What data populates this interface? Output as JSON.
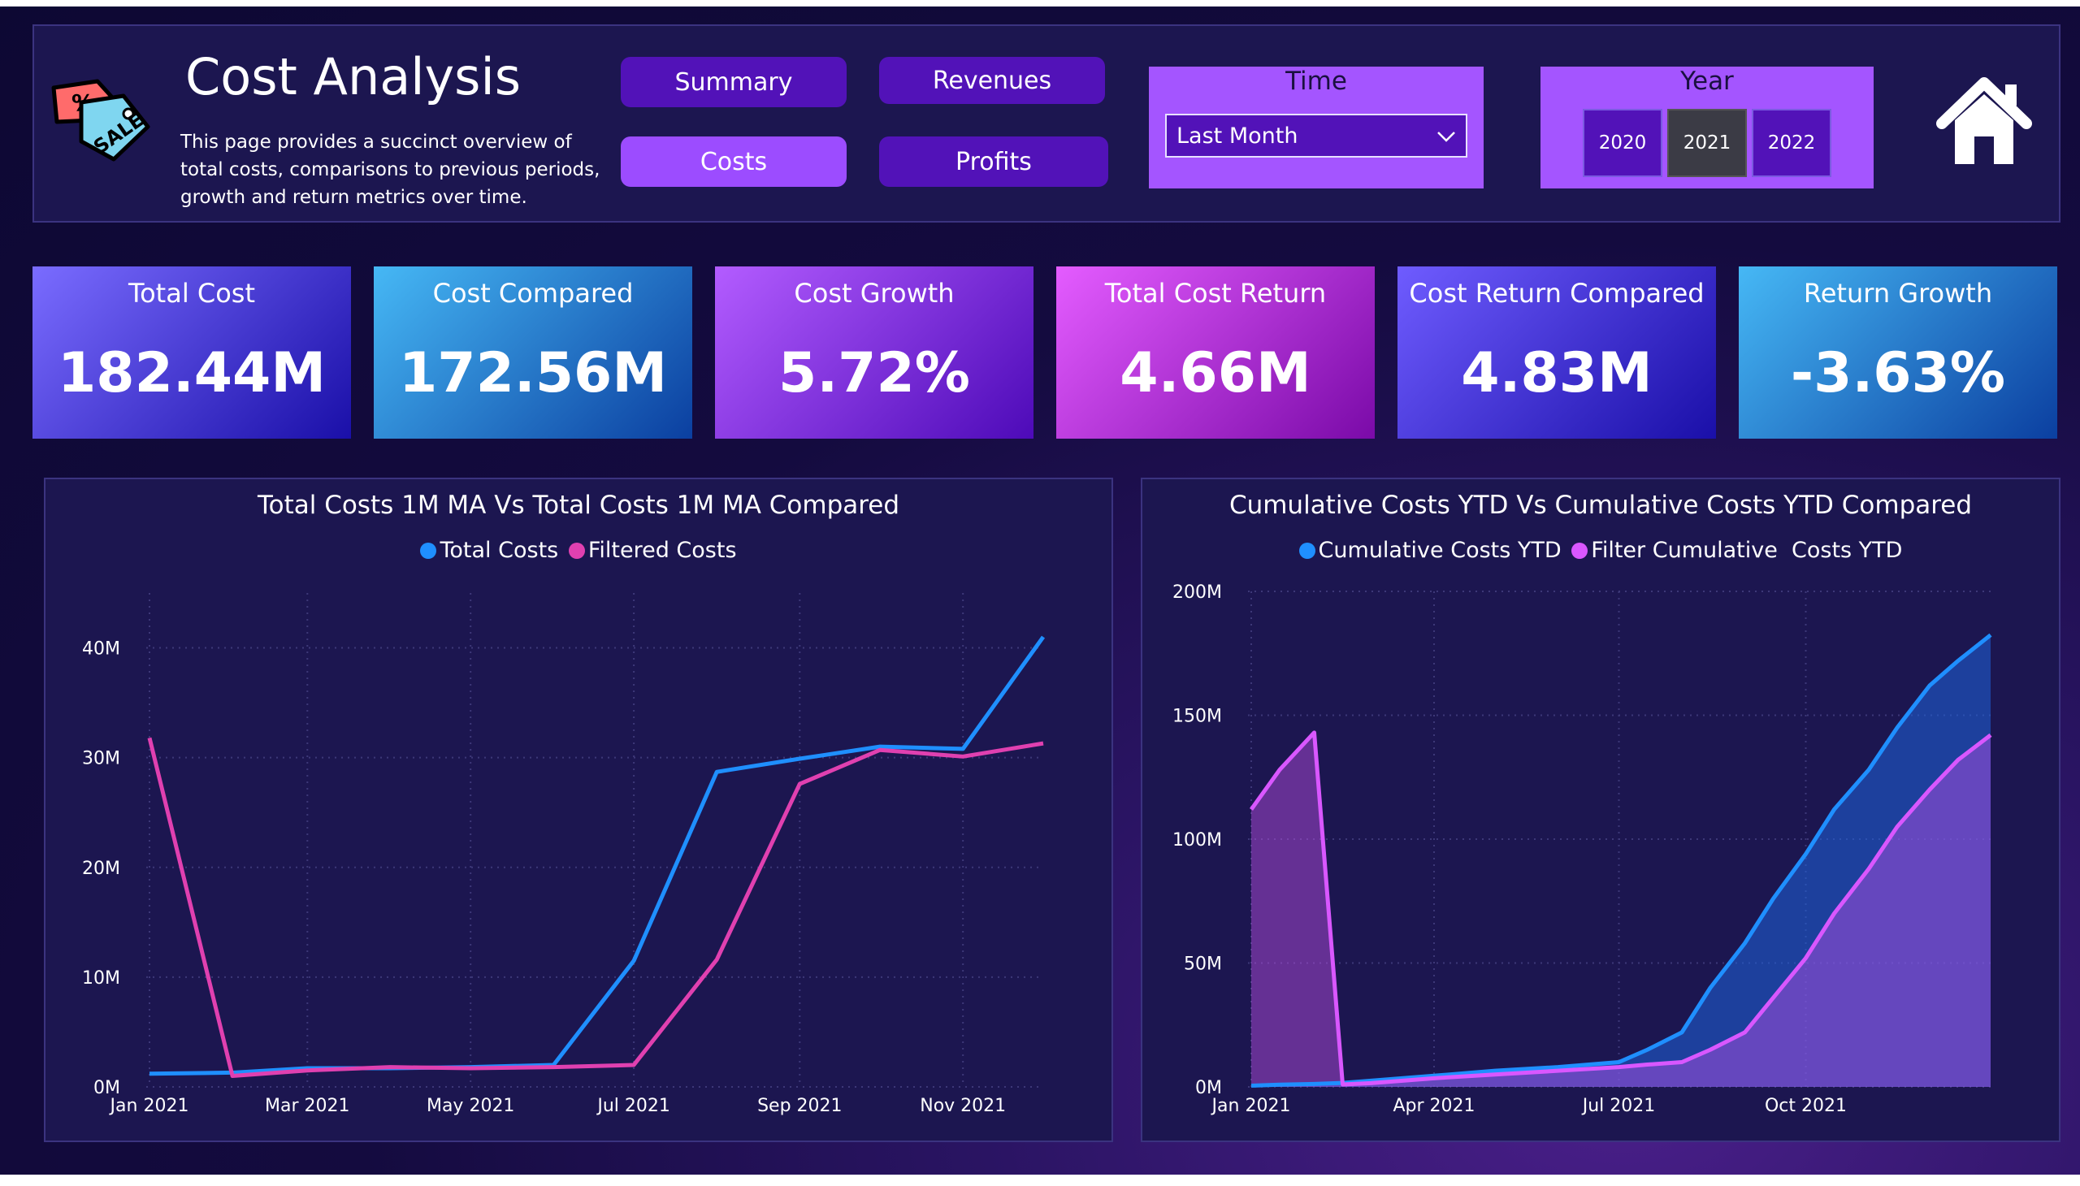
{
  "header": {
    "title": "Cost Analysis",
    "description": "This page provides a succinct overview of total costs, comparisons to previous periods, growth and return metrics over time.",
    "logo_icon": "sale-tag-icon"
  },
  "nav": {
    "summary": "Summary",
    "revenues": "Revenues",
    "costs": "Costs",
    "profits": "Profits",
    "active": "Costs"
  },
  "time_slicer": {
    "title": "Time",
    "selected": "Last Month"
  },
  "year_slicer": {
    "title": "Year",
    "options": [
      "2020",
      "2021",
      "2022"
    ],
    "selected": "2021"
  },
  "home_icon": "home-icon",
  "kpis": [
    {
      "label": "Total Cost",
      "value": "182.44M",
      "colors": [
        "#7a6cff",
        "#1a0fa8"
      ]
    },
    {
      "label": "Cost Compared",
      "value": "172.56M",
      "colors": [
        "#46b8f5",
        "#0b3fa0"
      ]
    },
    {
      "label": "Cost Growth",
      "value": "5.72%",
      "colors": [
        "#b35cff",
        "#4d0ab8"
      ]
    },
    {
      "label": "Total Cost Return",
      "value": "4.66M",
      "colors": [
        "#e45cff",
        "#7a0aa8"
      ]
    },
    {
      "label": "Cost Return Compared",
      "value": "4.83M",
      "colors": [
        "#6f5cff",
        "#1a0fa8"
      ]
    },
    {
      "label": "Return Growth",
      "value": "-3.63%",
      "colors": [
        "#46b8f5",
        "#0b3fa0"
      ]
    }
  ],
  "chart_data": [
    {
      "type": "line",
      "title": "Total Costs 1M MA Vs Total Costs 1M MA Compared",
      "x": [
        "2021-01-01",
        "2021-02-01",
        "2021-03-01",
        "2021-04-01",
        "2021-05-01",
        "2021-06-01",
        "2021-07-01",
        "2021-08-01",
        "2021-09-01",
        "2021-10-01",
        "2021-11-01",
        "2021-12-01"
      ],
      "xticks": [
        "Jan 2021",
        "Mar 2021",
        "May 2021",
        "Jul 2021",
        "Sep 2021",
        "Nov 2021"
      ],
      "yticks": [
        "0M",
        "10M",
        "20M",
        "30M",
        "40M"
      ],
      "ylim": [
        0,
        45
      ],
      "series": [
        {
          "name": "Total Costs",
          "color": "#1f8fff",
          "values": [
            1.2,
            1.3,
            1.7,
            1.7,
            1.8,
            2.0,
            11.5,
            28.7,
            29.9,
            31.0,
            30.8,
            41.0
          ]
        },
        {
          "name": "Filtered Costs",
          "color": "#e040b0",
          "values": [
            31.8,
            1.0,
            1.5,
            1.8,
            1.7,
            1.8,
            2.0,
            11.6,
            27.6,
            30.7,
            30.1,
            31.3
          ]
        }
      ],
      "grid": true,
      "legend": "top-center"
    },
    {
      "type": "area",
      "title": "Cumulative Costs YTD Vs Cumulative Costs YTD Compared",
      "x": [
        "2021-01-01",
        "2021-01-15",
        "2021-02-01",
        "2021-02-15",
        "2021-03-01",
        "2021-04-01",
        "2021-05-01",
        "2021-06-01",
        "2021-07-01",
        "2021-07-15",
        "2021-08-01",
        "2021-08-15",
        "2021-09-01",
        "2021-09-15",
        "2021-10-01",
        "2021-10-15",
        "2021-11-01",
        "2021-11-15",
        "2021-12-01",
        "2021-12-15",
        "2021-12-31"
      ],
      "xticks": [
        "Jan 2021",
        "Apr 2021",
        "Jul 2021",
        "Oct 2021"
      ],
      "yticks": [
        "0M",
        "50M",
        "100M",
        "150M",
        "200M"
      ],
      "ylim": [
        0,
        200
      ],
      "series": [
        {
          "name": "Cumulative Costs YTD",
          "color": "#1f8fff",
          "values": [
            0.5,
            0.9,
            1.2,
            1.6,
            2.5,
            4.5,
            6.5,
            8.0,
            10.0,
            15.0,
            22.0,
            40.0,
            58.0,
            76.0,
            94.0,
            112.0,
            128.0,
            145.0,
            162.0,
            172.0,
            182.4
          ]
        },
        {
          "name": "Filter Cumulative  Costs YTD",
          "color": "#d957ff",
          "values": [
            112.0,
            128.0,
            143.0,
            1.0,
            1.5,
            3.5,
            5.0,
            6.5,
            8.0,
            9.0,
            10.0,
            15.0,
            22.0,
            36.0,
            52.0,
            70.0,
            88.0,
            105.0,
            120.0,
            132.0,
            142.0
          ]
        }
      ],
      "grid": true,
      "legend": "top-center"
    }
  ]
}
